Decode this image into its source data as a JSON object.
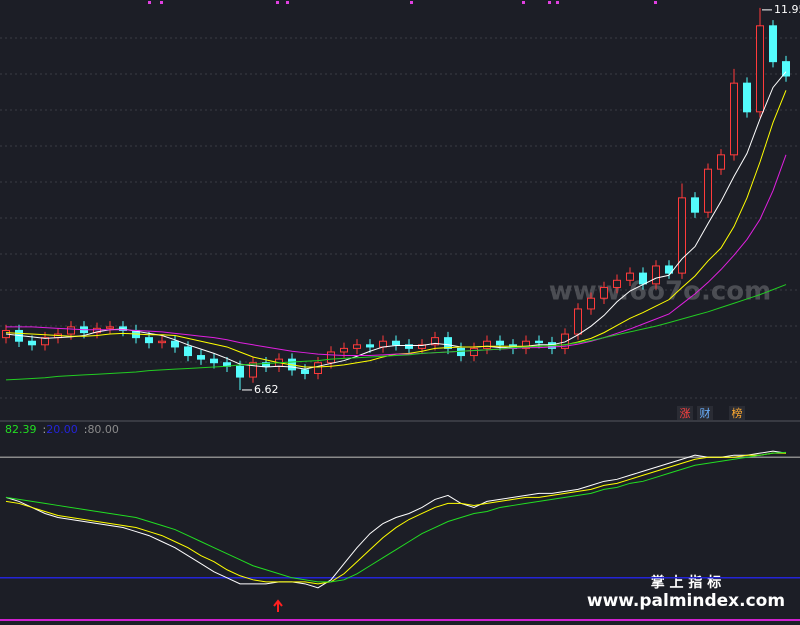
{
  "chart_data": [
    {
      "type": "candlestick",
      "open": [
        7.35,
        7.45,
        7.3,
        7.25,
        7.35,
        7.4,
        7.5,
        7.42,
        7.48,
        7.5,
        7.45,
        7.35,
        7.28,
        7.3,
        7.22,
        7.1,
        7.05,
        7.0,
        6.95,
        6.8,
        7.0,
        6.95,
        7.05,
        6.9,
        6.85,
        7.0,
        7.15,
        7.2,
        7.25,
        7.22,
        7.3,
        7.25,
        7.2,
        7.25,
        7.35,
        7.2,
        7.1,
        7.2,
        7.3,
        7.25,
        7.2,
        7.3,
        7.28,
        7.2,
        7.4,
        7.75,
        7.9,
        8.05,
        8.15,
        8.25,
        8.1,
        8.35,
        8.25,
        9.3,
        9.1,
        9.7,
        9.9,
        10.9,
        10.5,
        11.7,
        11.2
      ],
      "high": [
        7.53,
        7.53,
        7.38,
        7.43,
        7.48,
        7.58,
        7.58,
        7.56,
        7.58,
        7.58,
        7.53,
        7.43,
        7.38,
        7.38,
        7.3,
        7.18,
        7.13,
        7.08,
        7.03,
        7.08,
        7.08,
        7.13,
        7.13,
        6.98,
        7.08,
        7.23,
        7.28,
        7.33,
        7.33,
        7.38,
        7.38,
        7.33,
        7.33,
        7.43,
        7.43,
        7.28,
        7.28,
        7.38,
        7.38,
        7.33,
        7.38,
        7.38,
        7.36,
        7.48,
        7.83,
        7.98,
        8.13,
        8.23,
        8.33,
        8.33,
        8.43,
        8.43,
        9.5,
        9.38,
        9.78,
        9.98,
        11.1,
        10.98,
        11.95,
        11.78,
        11.28
      ],
      "low": [
        7.27,
        7.22,
        7.17,
        7.17,
        7.27,
        7.32,
        7.34,
        7.34,
        7.4,
        7.37,
        7.27,
        7.2,
        7.2,
        7.14,
        7.02,
        6.97,
        6.92,
        6.87,
        6.62,
        6.72,
        6.87,
        6.87,
        6.82,
        6.77,
        6.77,
        6.92,
        7.07,
        7.12,
        7.14,
        7.14,
        7.17,
        7.12,
        7.12,
        7.17,
        7.12,
        7.02,
        7.02,
        7.12,
        7.17,
        7.12,
        7.12,
        7.2,
        7.12,
        7.12,
        7.32,
        7.67,
        7.82,
        7.97,
        8.07,
        8.02,
        8.02,
        8.17,
        8.17,
        9.02,
        9.02,
        9.62,
        9.82,
        10.42,
        10.42,
        11.12,
        10.92
      ],
      "close": [
        7.45,
        7.3,
        7.25,
        7.35,
        7.4,
        7.5,
        7.42,
        7.48,
        7.5,
        7.45,
        7.35,
        7.28,
        7.3,
        7.22,
        7.1,
        7.05,
        7.0,
        6.95,
        6.8,
        7.0,
        6.95,
        7.05,
        6.9,
        6.85,
        7.0,
        7.15,
        7.2,
        7.25,
        7.22,
        7.3,
        7.25,
        7.2,
        7.25,
        7.35,
        7.2,
        7.1,
        7.2,
        7.3,
        7.25,
        7.2,
        7.3,
        7.28,
        7.2,
        7.4,
        7.75,
        7.9,
        8.05,
        8.15,
        8.25,
        8.1,
        8.35,
        8.25,
        9.3,
        9.1,
        9.7,
        9.9,
        10.9,
        10.5,
        11.7,
        11.2,
        11.0
      ],
      "up_color": "#ff3b3b",
      "down_color": "#54fcfc",
      "ylim": [
        6.48,
        12.06
      ],
      "series": [
        {
          "color": "#ffffff",
          "values": [
            7.4,
            7.38,
            7.36,
            7.34,
            7.35,
            7.36,
            7.38,
            7.43,
            7.46,
            7.47,
            7.44,
            7.41,
            7.38,
            7.32,
            7.25,
            7.19,
            7.13,
            7.06,
            6.98,
            6.96,
            6.94,
            6.95,
            6.94,
            6.91,
            6.95,
            6.99,
            7.03,
            7.09,
            7.16,
            7.22,
            7.24,
            7.24,
            7.24,
            7.27,
            7.25,
            7.22,
            7.22,
            7.23,
            7.21,
            7.21,
            7.23,
            7.25,
            7.25,
            7.29,
            7.39,
            7.51,
            7.66,
            7.85,
            8.0,
            8.09,
            8.18,
            8.22,
            8.45,
            8.62,
            8.94,
            9.25,
            9.6,
            9.92,
            10.4,
            10.84,
            11.06
          ]
        },
        {
          "color": "#ffff00",
          "values": [
            7.42,
            7.41,
            7.4,
            7.39,
            7.38,
            7.37,
            7.37,
            7.38,
            7.4,
            7.41,
            7.4,
            7.39,
            7.39,
            7.38,
            7.34,
            7.3,
            7.26,
            7.22,
            7.15,
            7.08,
            7.04,
            7.0,
            6.97,
            6.94,
            6.94,
            6.95,
            6.97,
            7.0,
            7.03,
            7.08,
            7.12,
            7.13,
            7.16,
            7.2,
            7.21,
            7.22,
            7.22,
            7.23,
            7.23,
            7.23,
            7.23,
            7.23,
            7.24,
            7.25,
            7.29,
            7.34,
            7.42,
            7.52,
            7.62,
            7.7,
            7.79,
            7.88,
            8.05,
            8.21,
            8.42,
            8.6,
            8.9,
            9.3,
            9.8,
            10.35,
            10.8
          ]
        },
        {
          "color": "#e020e0",
          "values": [
            7.5,
            7.5,
            7.5,
            7.49,
            7.48,
            7.47,
            7.46,
            7.46,
            7.46,
            7.46,
            7.45,
            7.44,
            7.43,
            7.41,
            7.39,
            7.37,
            7.35,
            7.32,
            7.28,
            7.25,
            7.22,
            7.19,
            7.16,
            7.14,
            7.12,
            7.11,
            7.1,
            7.1,
            7.1,
            7.11,
            7.12,
            7.12,
            7.13,
            7.14,
            7.15,
            7.16,
            7.17,
            7.18,
            7.19,
            7.2,
            7.21,
            7.21,
            7.22,
            7.23,
            7.26,
            7.3,
            7.35,
            7.41,
            7.47,
            7.54,
            7.61,
            7.68,
            7.82,
            7.96,
            8.12,
            8.3,
            8.5,
            8.72,
            9.0,
            9.4,
            9.9
          ]
        },
        {
          "color": "#22cc22",
          "values": [
            6.76,
            6.77,
            6.78,
            6.79,
            6.81,
            6.82,
            6.83,
            6.84,
            6.85,
            6.86,
            6.87,
            6.89,
            6.9,
            6.91,
            6.92,
            6.93,
            6.94,
            6.95,
            6.97,
            6.98,
            6.99,
            7.0,
            7.01,
            7.02,
            7.03,
            7.05,
            7.06,
            7.07,
            7.08,
            7.09,
            7.1,
            7.11,
            7.13,
            7.14,
            7.15,
            7.16,
            7.17,
            7.18,
            7.19,
            7.21,
            7.22,
            7.23,
            7.24,
            7.25,
            7.28,
            7.31,
            7.35,
            7.39,
            7.43,
            7.47,
            7.51,
            7.56,
            7.61,
            7.66,
            7.71,
            7.77,
            7.83,
            7.89,
            7.95,
            8.02,
            8.09
          ]
        }
      ]
    },
    {
      "type": "line",
      "ylim": [
        0,
        100
      ],
      "levels": [
        {
          "value": 20,
          "label": "20.00",
          "color": "#2424d8"
        },
        {
          "value": 80,
          "label": "80.00",
          "color": "#8a8a8a"
        }
      ],
      "series": [
        {
          "color": "#ffffff",
          "values": [
            60,
            58,
            55,
            52,
            50,
            49,
            48,
            47,
            46,
            45,
            43,
            41,
            38,
            35,
            31,
            27,
            23,
            20,
            17,
            17,
            17,
            18,
            18,
            17,
            15,
            19,
            27,
            35,
            42,
            47,
            50,
            52,
            55,
            59,
            61,
            57,
            55,
            58,
            59,
            60,
            61,
            62,
            62,
            63,
            64,
            66,
            68,
            69,
            71,
            73,
            75,
            77,
            79,
            81,
            80,
            80,
            81,
            81,
            82,
            83,
            82
          ]
        },
        {
          "color": "#ffff00",
          "values": [
            58,
            57,
            55,
            53,
            51,
            50,
            49,
            48,
            47,
            46,
            45,
            43,
            41,
            38,
            35,
            31,
            28,
            24,
            21,
            19,
            18,
            18,
            18,
            18,
            17,
            18,
            22,
            28,
            34,
            40,
            45,
            49,
            52,
            55,
            57,
            57,
            56,
            57,
            58,
            59,
            60,
            60,
            61,
            62,
            63,
            64,
            66,
            67,
            69,
            71,
            73,
            75,
            77,
            79,
            80,
            80,
            80,
            81,
            81,
            82,
            82
          ]
        },
        {
          "color": "#22dd22",
          "values": [
            60,
            59,
            58,
            57,
            56,
            55,
            54,
            53,
            52,
            51,
            50,
            48,
            46,
            44,
            41,
            38,
            35,
            32,
            29,
            26,
            24,
            22,
            20,
            19,
            18,
            18,
            19,
            22,
            26,
            30,
            34,
            38,
            42,
            45,
            48,
            50,
            52,
            53,
            55,
            56,
            57,
            58,
            59,
            60,
            61,
            62,
            64,
            65,
            67,
            68,
            70,
            72,
            74,
            76,
            77,
            78,
            79,
            80,
            81,
            82,
            82.39
          ]
        }
      ]
    }
  ],
  "buttons": [
    "涨",
    "财",
    "榜"
  ],
  "watermark": "www.6o7o.com",
  "footer": {
    "title": "掌 上 指 标",
    "url": "www.palmindex.com"
  }
}
